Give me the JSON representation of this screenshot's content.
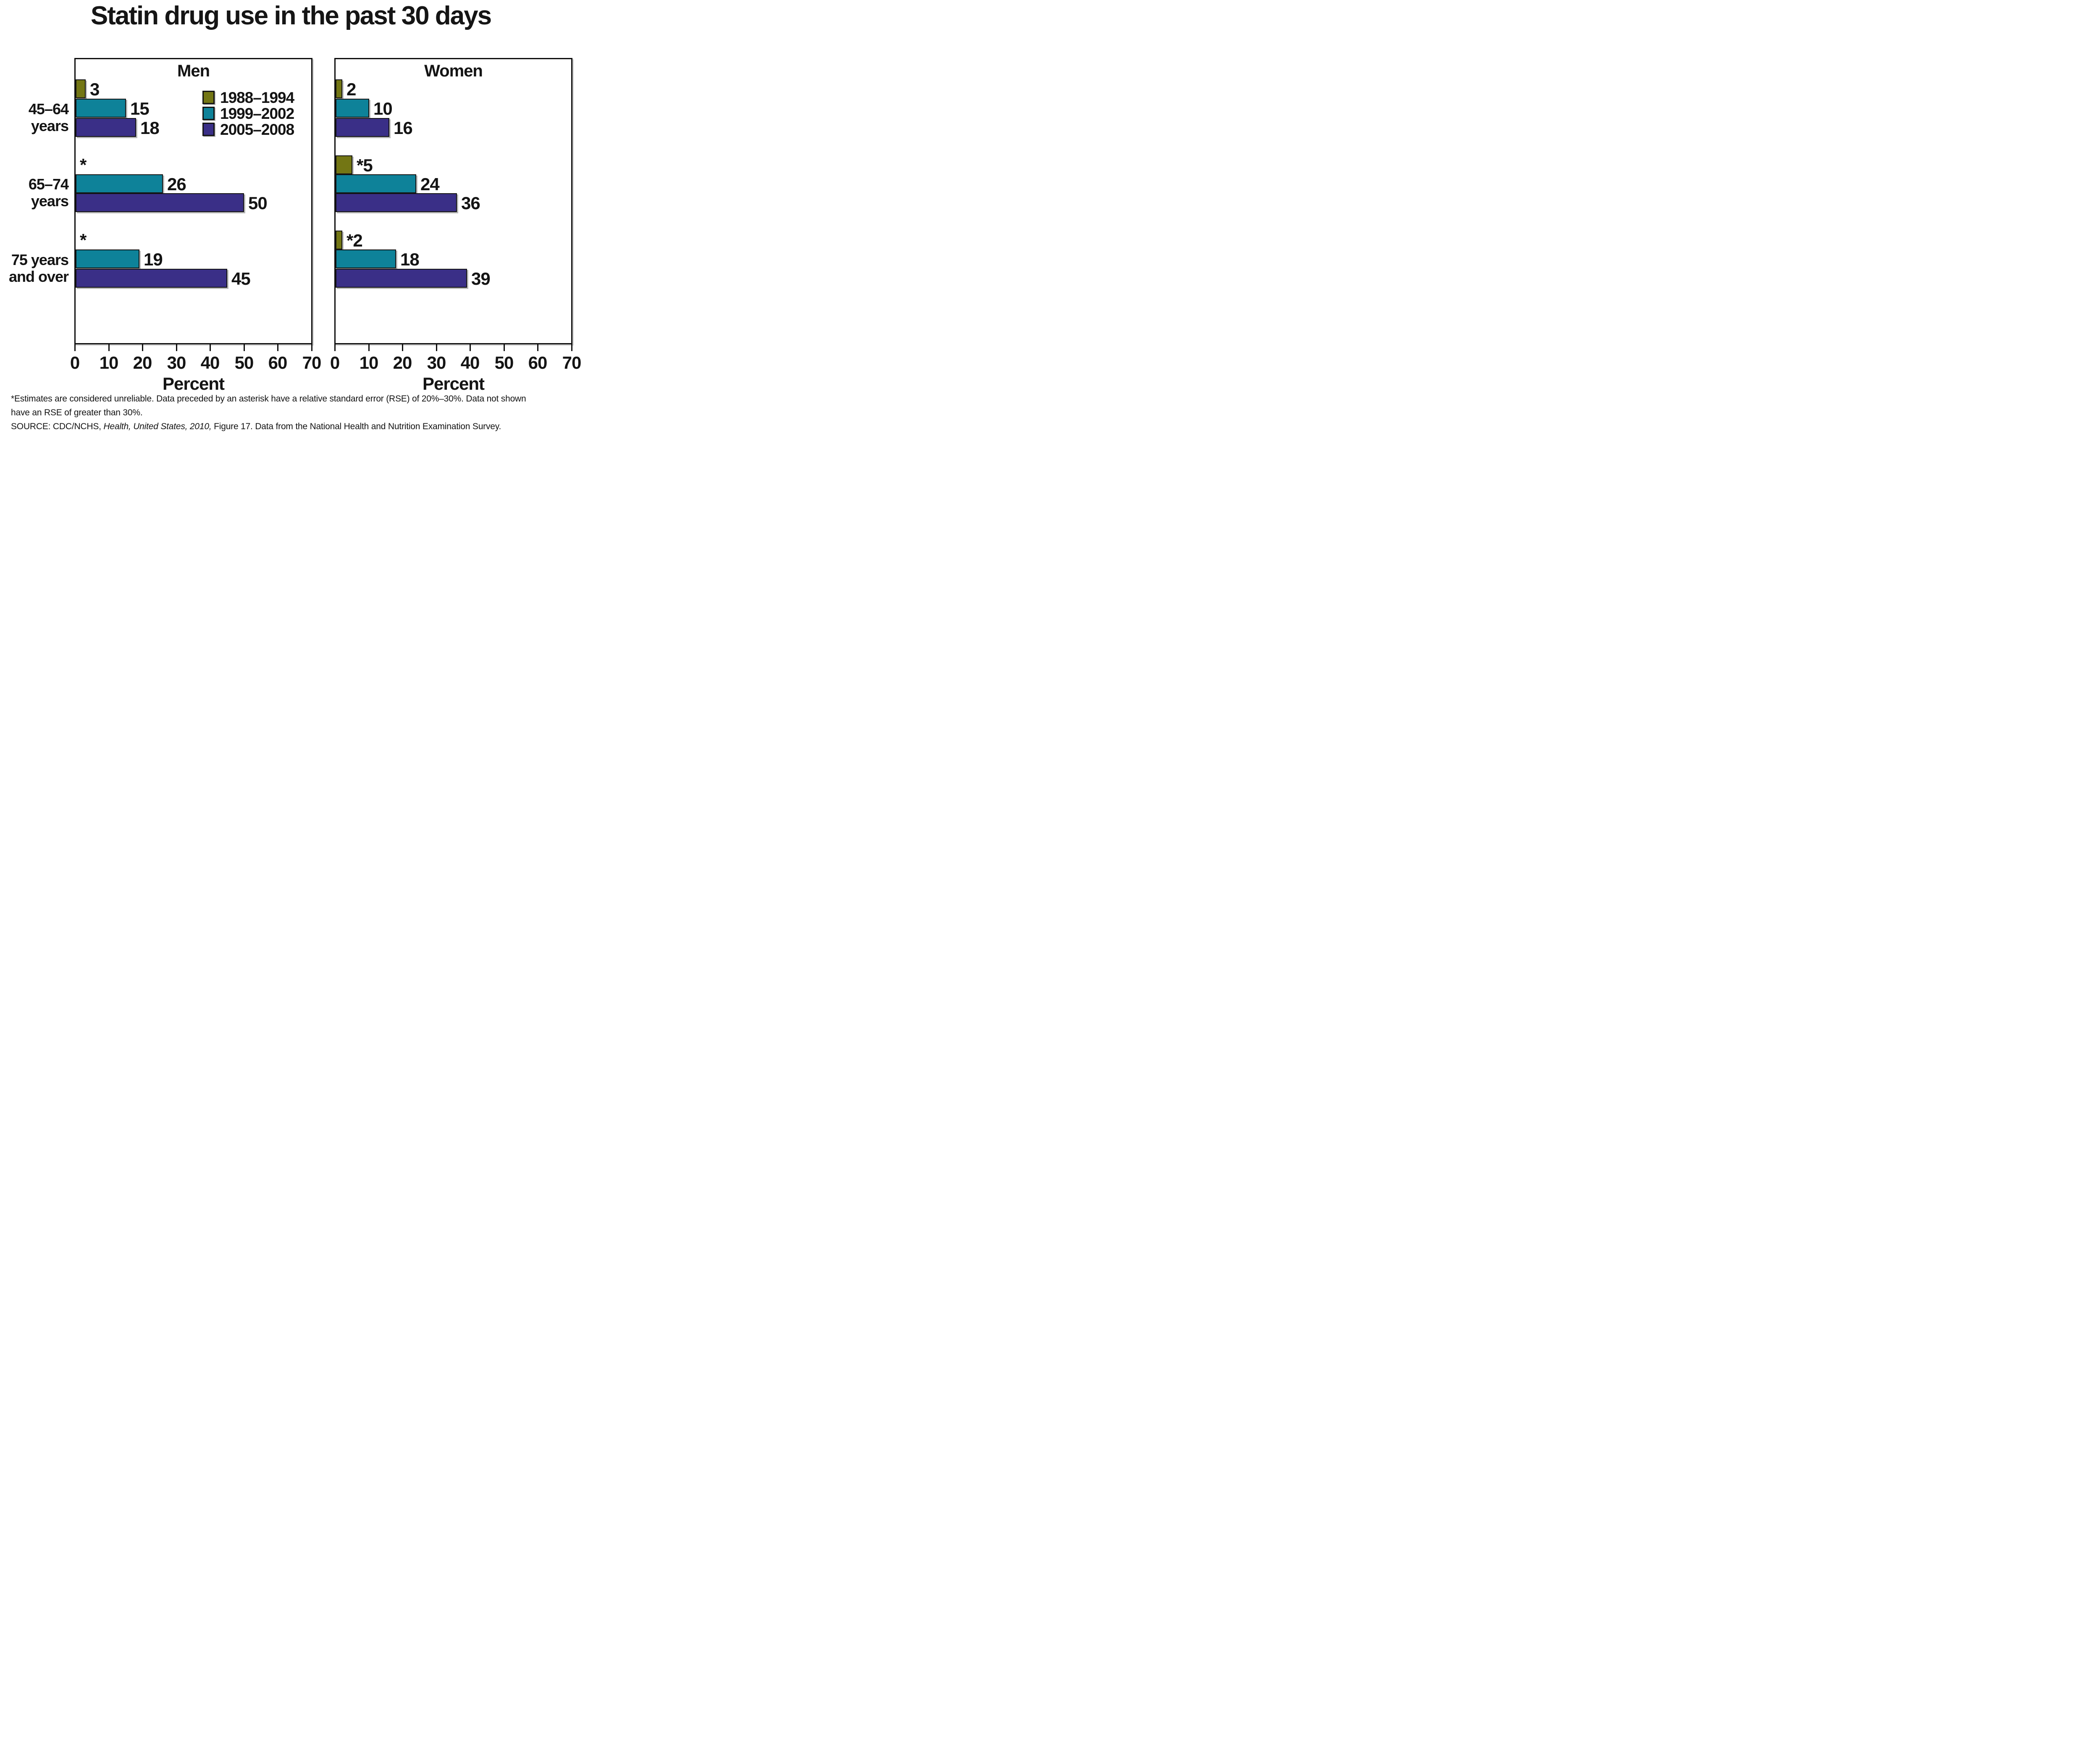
{
  "title": "Statin drug use in the past 30 days",
  "footnote": {
    "line1": "*Estimates are considered unreliable. Data preceded by an asterisk have a relative standard error (RSE) of 20%–30%. Data not shown",
    "line2": "have an RSE of greater than 30%.",
    "source_prefix": "SOURCE: CDC/NCHS, ",
    "source_italic": "Health, United States, 2010,",
    "source_suffix": " Figure 17. Data from the National Health and Nutrition Examination Survey."
  },
  "colors": {
    "series_1988_1994": "#737614",
    "series_1999_2002": "#0e8299",
    "series_2005_2008": "#3a2f87",
    "axis": "#0e0e0e",
    "text": "#141414"
  },
  "chart_data": {
    "type": "bar",
    "orientation": "horizontal",
    "xlabel": "Percent",
    "xlim": [
      0,
      70
    ],
    "xticks": [
      0,
      10,
      20,
      30,
      40,
      50,
      60,
      70
    ],
    "grid": false,
    "legend_position": "upper-right-of-left-panel",
    "categories": [
      [
        "45–64",
        "years"
      ],
      [
        "65–74",
        "years"
      ],
      [
        "75 years",
        "and over"
      ]
    ],
    "legend": [
      {
        "label": "1988–1994",
        "color": "#737614"
      },
      {
        "label": "1999–2002",
        "color": "#0e8299"
      },
      {
        "label": "2005–2008",
        "color": "#3a2f87"
      }
    ],
    "panels": [
      {
        "title": "Men",
        "series": [
          {
            "name": "1988–1994",
            "color": "#737614",
            "values": [
              3,
              null,
              null
            ],
            "labels": [
              "3",
              "*",
              "*"
            ]
          },
          {
            "name": "1999–2002",
            "color": "#0e8299",
            "values": [
              15,
              26,
              19
            ],
            "labels": [
              "15",
              "26",
              "19"
            ]
          },
          {
            "name": "2005–2008",
            "color": "#3a2f87",
            "values": [
              18,
              50,
              45
            ],
            "labels": [
              "18",
              "50",
              "45"
            ]
          }
        ]
      },
      {
        "title": "Women",
        "series": [
          {
            "name": "1988–1994",
            "color": "#737614",
            "values": [
              2,
              5,
              2
            ],
            "labels": [
              "2",
              "*5",
              "*2"
            ]
          },
          {
            "name": "1999–2002",
            "color": "#0e8299",
            "values": [
              10,
              24,
              18
            ],
            "labels": [
              "10",
              "24",
              "18"
            ]
          },
          {
            "name": "2005–2008",
            "color": "#3a2f87",
            "values": [
              16,
              36,
              39
            ],
            "labels": [
              "16",
              "36",
              "39"
            ]
          }
        ]
      }
    ]
  }
}
